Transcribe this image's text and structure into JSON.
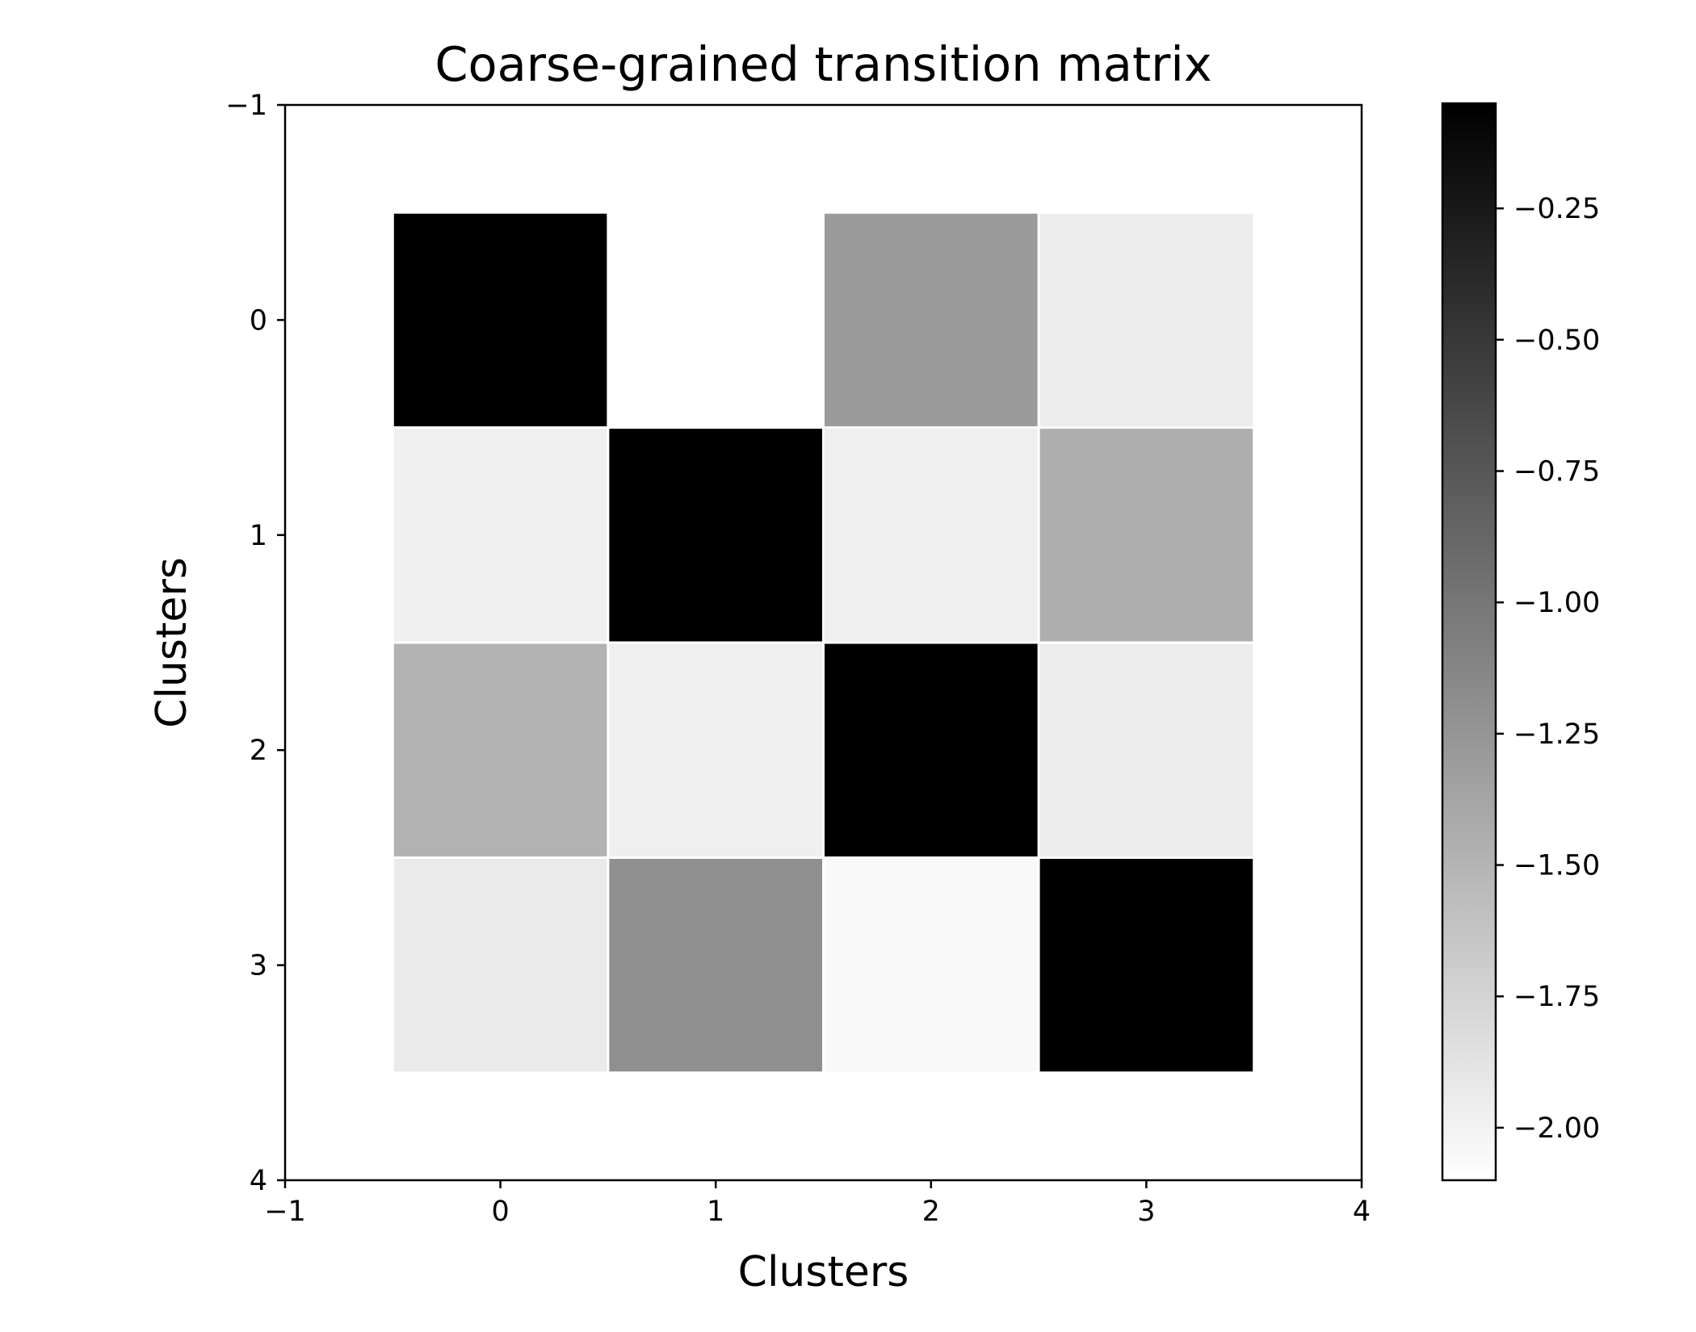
{
  "chart_data": {
    "type": "heatmap",
    "title": "Coarse-grained transition matrix",
    "xlabel": "Clusters",
    "ylabel": "Clusters",
    "xlim": [
      -1,
      4
    ],
    "ylim": [
      4,
      -1
    ],
    "y_inverted": true,
    "x_ticks": [
      -1,
      0,
      1,
      2,
      3,
      4
    ],
    "y_ticks": [
      -1,
      0,
      1,
      2,
      3,
      4
    ],
    "x_tick_labels": [
      "−1",
      "0",
      "1",
      "2",
      "3",
      "4"
    ],
    "y_tick_labels": [
      "−1",
      "0",
      "1",
      "2",
      "3",
      "4"
    ],
    "rows": [
      0,
      1,
      2,
      3
    ],
    "cols": [
      0,
      1,
      2,
      3
    ],
    "values": [
      [
        -0.05,
        -2.1,
        -1.3,
        -1.95
      ],
      [
        -1.97,
        -0.05,
        -1.97,
        -1.45
      ],
      [
        -1.48,
        -1.97,
        -0.05,
        -1.95
      ],
      [
        -1.93,
        -1.2,
        -2.05,
        -0.05
      ]
    ],
    "colormap": "greys",
    "colorbar": {
      "min": -2.1,
      "max": -0.05,
      "ticks": [
        -0.25,
        -0.5,
        -0.75,
        -1.0,
        -1.25,
        -1.5,
        -1.75,
        -2.0
      ],
      "tick_labels": [
        "−0.25",
        "−0.50",
        "−0.75",
        "−1.00",
        "−1.25",
        "−1.50",
        "−1.75",
        "−2.00"
      ],
      "low_color": "#ffffff",
      "high_color": "#000000"
    },
    "grid": false,
    "legend": "none"
  }
}
